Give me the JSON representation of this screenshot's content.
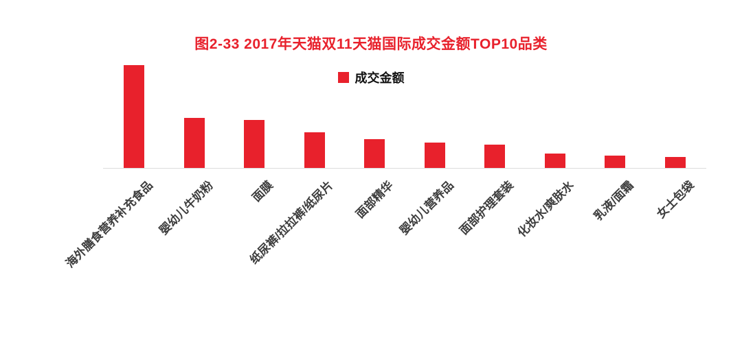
{
  "chart_data": {
    "type": "bar",
    "title": "图2-33 2017年天猫双11天猫国际成交金额TOP10品类",
    "legend": [
      "成交金额"
    ],
    "categories": [
      "海外膳食营养补充食品",
      "婴幼儿牛奶粉",
      "面膜",
      "纸尿裤/拉拉裤/纸尿片",
      "面部精华",
      "婴幼儿营养品",
      "面部护理套装",
      "化妆水/爽肤水",
      "乳液/面霜",
      "女士包袋"
    ],
    "values": [
      100,
      49,
      47,
      35,
      28,
      25,
      23,
      14,
      12,
      11
    ],
    "xlabel": "",
    "ylabel": "",
    "ylim": [
      0,
      100
    ],
    "grid": false,
    "legend_position": "top",
    "bar_color": "#e8212c",
    "title_color": "#e8212c",
    "axis_color": "#dcdcdc",
    "label_color": "#3d3d3d"
  }
}
